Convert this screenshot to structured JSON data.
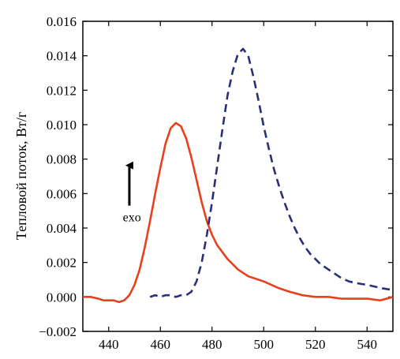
{
  "chart_data": {
    "type": "line",
    "title": "",
    "xlabel": "",
    "ylabel": "Тепловой поток, Вт/г",
    "xlim": [
      430,
      550
    ],
    "ylim": [
      -0.002,
      0.016
    ],
    "x_ticks": [
      440,
      460,
      480,
      500,
      520,
      540
    ],
    "y_ticks": [
      -0.002,
      0.0,
      0.002,
      0.004,
      0.006,
      0.008,
      0.01,
      0.012,
      0.014,
      0.016
    ],
    "x_tick_labels": [
      "440",
      "460",
      "480",
      "500",
      "520",
      "540"
    ],
    "y_tick_labels": [
      "−0.002",
      "0.000",
      "0.002",
      "0.004",
      "0.006",
      "0.008",
      "0.010",
      "0.012",
      "0.014",
      "0.016"
    ],
    "grid": false,
    "annotation": {
      "text": "exo",
      "arrow_x": 448,
      "arrow_from_y": 0.0053,
      "arrow_to_y": 0.008,
      "text_x": 449,
      "text_y": 0.0044
    },
    "series": [
      {
        "style": "solid",
        "color": "#e8401c",
        "x": [
          430,
          433,
          436,
          438,
          440,
          442,
          444,
          446,
          448,
          450,
          452,
          454,
          456,
          458,
          460,
          462,
          464,
          466,
          468,
          470,
          472,
          474,
          476,
          478,
          480,
          482,
          484,
          486,
          488,
          490,
          492,
          494,
          496,
          498,
          500,
          503,
          506,
          510,
          515,
          520,
          525,
          530,
          535,
          540,
          545,
          550
        ],
        "y": [
          0.0,
          0.0,
          -0.0001,
          -0.0002,
          -0.0002,
          -0.0002,
          -0.0003,
          -0.0002,
          0.0001,
          0.0007,
          0.0016,
          0.0029,
          0.0044,
          0.006,
          0.0075,
          0.0089,
          0.0098,
          0.0101,
          0.0099,
          0.0092,
          0.0081,
          0.0068,
          0.0055,
          0.0044,
          0.0036,
          0.003,
          0.0026,
          0.0022,
          0.0019,
          0.0016,
          0.0014,
          0.0012,
          0.0011,
          0.001,
          0.0009,
          0.0007,
          0.0005,
          0.0003,
          0.0001,
          0.0,
          0.0,
          -0.0001,
          -0.0001,
          -0.0001,
          -0.0002,
          0.0
        ]
      },
      {
        "style": "dashed",
        "color": "#2b2f7a",
        "x": [
          456,
          458,
          460,
          462,
          464,
          466,
          468,
          470,
          472,
          474,
          476,
          478,
          480,
          482,
          484,
          486,
          488,
          490,
          492,
          494,
          496,
          498,
          500,
          502,
          504,
          506,
          508,
          510,
          512,
          514,
          516,
          518,
          520,
          522,
          524,
          526,
          528,
          530,
          533,
          536,
          540,
          543,
          546,
          550
        ],
        "y": [
          0.0,
          0.0001,
          0.0,
          0.0001,
          0.0001,
          0.0,
          0.0001,
          0.0001,
          0.0003,
          0.0009,
          0.002,
          0.0036,
          0.0055,
          0.0076,
          0.0097,
          0.0117,
          0.0131,
          0.0141,
          0.0144,
          0.014,
          0.0128,
          0.0114,
          0.0099,
          0.0086,
          0.0074,
          0.0064,
          0.0055,
          0.0047,
          0.004,
          0.0034,
          0.0029,
          0.0025,
          0.0022,
          0.0019,
          0.0017,
          0.0015,
          0.0013,
          0.0011,
          0.0009,
          0.0008,
          0.0007,
          0.0006,
          0.0005,
          0.0004
        ]
      }
    ]
  }
}
